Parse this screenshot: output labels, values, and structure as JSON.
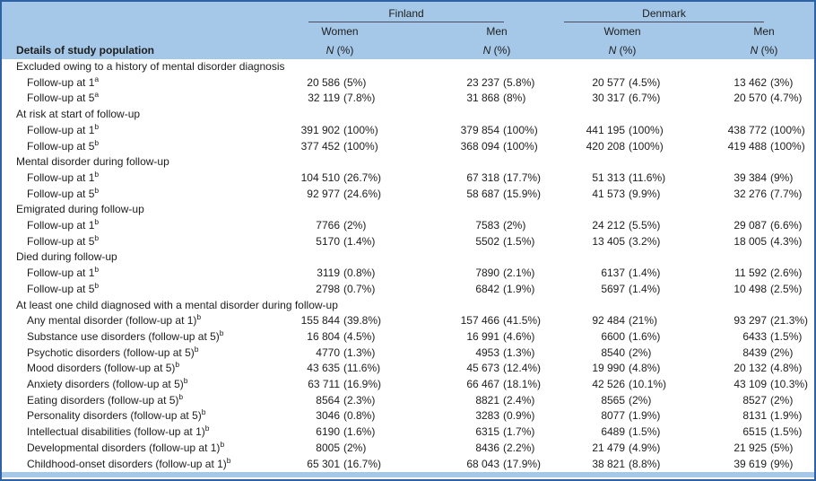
{
  "header": {
    "row_label_title": "Details of study population",
    "metric_label": "N (%)",
    "groups": [
      {
        "label": "Finland"
      },
      {
        "label": "Denmark"
      }
    ],
    "columns": [
      {
        "gender": "Women"
      },
      {
        "gender": "Men"
      },
      {
        "gender": "Women"
      },
      {
        "gender": "Men"
      }
    ]
  },
  "colors": {
    "header_bg": "#a5c8e8",
    "frame_border": "#2f62a4",
    "rule": "#4a4a63",
    "text": "#1d1d1d"
  },
  "sections": [
    {
      "label": "Excluded owing to a history of mental disorder diagnosis",
      "rows": [
        {
          "label": "Follow-up at 1",
          "sup": "a",
          "values": [
            "20 586 (5%)",
            "23 237 (5.8%)",
            "20 577 (4.5%)",
            "13 462 (3%)"
          ]
        },
        {
          "label": "Follow-up at 5",
          "sup": "a",
          "values": [
            "32 119 (7.8%)",
            "31 868 (8%)",
            "30 317 (6.7%)",
            "20 570 (4.7%)"
          ]
        }
      ]
    },
    {
      "label": "At risk at start of follow-up",
      "rows": [
        {
          "label": "Follow-up at 1",
          "sup": "b",
          "values": [
            "391 902 (100%)",
            "379 854 (100%)",
            "441 195 (100%)",
            "438 772 (100%)"
          ]
        },
        {
          "label": "Follow-up at 5",
          "sup": "b",
          "values": [
            "377 452 (100%)",
            "368 094 (100%)",
            "420 208 (100%)",
            "419 488 (100%)"
          ]
        }
      ]
    },
    {
      "label": "Mental disorder during follow-up",
      "rows": [
        {
          "label": "Follow-up at 1",
          "sup": "b",
          "values": [
            "104 510 (26.7%)",
            "67 318 (17.7%)",
            "51 313 (11.6%)",
            "39 384 (9%)"
          ]
        },
        {
          "label": "Follow-up at 5",
          "sup": "b",
          "values": [
            "92 977 (24.6%)",
            "58 687 (15.9%)",
            "41 573 (9.9%)",
            "32 276 (7.7%)"
          ]
        }
      ]
    },
    {
      "label": "Emigrated during follow-up",
      "rows": [
        {
          "label": "Follow-up at 1",
          "sup": "b",
          "values": [
            "7766 (2%)",
            "7583 (2%)",
            "24 212 (5.5%)",
            "29 087 (6.6%)"
          ]
        },
        {
          "label": "Follow-up at 5",
          "sup": "b",
          "values": [
            "5170 (1.4%)",
            "5502 (1.5%)",
            "13 405 (3.2%)",
            "18 005 (4.3%)"
          ]
        }
      ]
    },
    {
      "label": "Died during follow-up",
      "rows": [
        {
          "label": "Follow-up at 1",
          "sup": "b",
          "values": [
            "3119 (0.8%)",
            "7890 (2.1%)",
            "6137 (1.4%)",
            "11 592 (2.6%)"
          ]
        },
        {
          "label": "Follow-up at 5",
          "sup": "b",
          "values": [
            "2798 (0.7%)",
            "6842 (1.9%)",
            "5697 (1.4%)",
            "10 498 (2.5%)"
          ]
        }
      ]
    },
    {
      "label": "At least one child diagnosed with a mental disorder during follow-up",
      "rows": [
        {
          "label": "Any mental disorder (follow-up at 1)",
          "sup": "b",
          "values": [
            "155 844 (39.8%)",
            "157 466 (41.5%)",
            "92 484 (21%)",
            "93 297 (21.3%)"
          ]
        },
        {
          "label": "Substance use disorders (follow-up at 5)",
          "sup": "b",
          "values": [
            "16 804 (4.5%)",
            "16 991 (4.6%)",
            "6600 (1.6%)",
            "6433 (1.5%)"
          ]
        },
        {
          "label": "Psychotic disorders (follow-up at 5)",
          "sup": "b",
          "values": [
            "4770 (1.3%)",
            "4953 (1.3%)",
            "8540 (2%)",
            "8439 (2%)"
          ]
        },
        {
          "label": "Mood disorders (follow-up at 5)",
          "sup": "b",
          "values": [
            "43 635 (11.6%)",
            "45 673 (12.4%)",
            "19 990 (4.8%)",
            "20 132 (4.8%)"
          ]
        },
        {
          "label": "Anxiety disorders (follow-up at 5)",
          "sup": "b",
          "values": [
            "63 711 (16.9%)",
            "66 467 (18.1%)",
            "42 526 (10.1%)",
            "43 109 (10.3%)"
          ]
        },
        {
          "label": "Eating disorders (follow-up at 5)",
          "sup": "b",
          "values": [
            "8564 (2.3%)",
            "8821 (2.4%)",
            "8565 (2%)",
            "8527 (2%)"
          ]
        },
        {
          "label": "Personality disorders (follow-up at 5)",
          "sup": "b",
          "values": [
            "3046 (0.8%)",
            "3283 (0.9%)",
            "8077 (1.9%)",
            "8131 (1.9%)"
          ]
        },
        {
          "label": "Intellectual disabilities (follow-up at 1)",
          "sup": "b",
          "values": [
            "6190 (1.6%)",
            "6315 (1.7%)",
            "6489 (1.5%)",
            "6515 (1.5%)"
          ]
        },
        {
          "label": "Developmental disorders (follow-up at 1)",
          "sup": "b",
          "values": [
            "8005 (2%)",
            "8436 (2.2%)",
            "21 479 (4.9%)",
            "21 925 (5%)"
          ]
        },
        {
          "label": "Childhood-onset disorders (follow-up at 1)",
          "sup": "b",
          "values": [
            "65 301 (16.7%)",
            "68 043 (17.9%)",
            "38 821 (8.8%)",
            "39 619 (9%)"
          ]
        }
      ]
    }
  ]
}
